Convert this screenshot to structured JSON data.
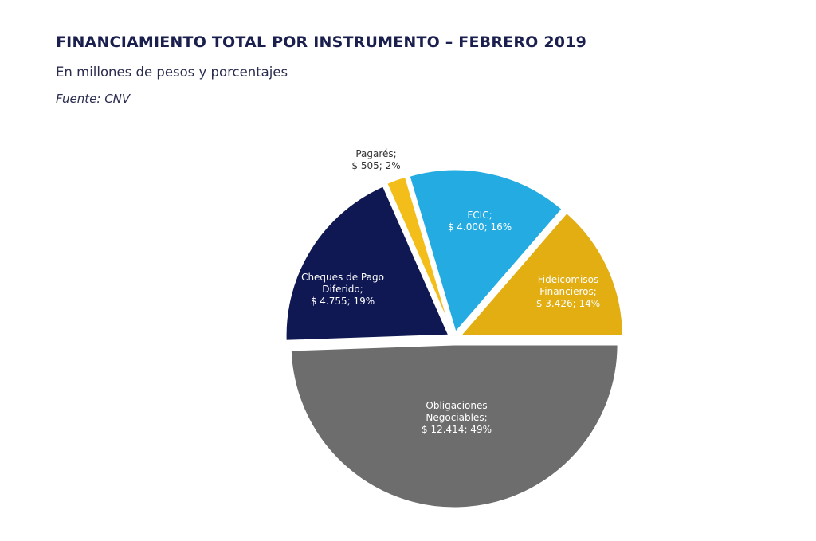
{
  "header": {
    "title": "FINANCIAMIENTO TOTAL POR INSTRUMENTO – FEBRERO 2019",
    "subtitle": "En millones de pesos y porcentajes",
    "source": "Fuente: CNV"
  },
  "chart_data": {
    "type": "pie",
    "title": "FINANCIAMIENTO TOTAL POR INSTRUMENTO – FEBRERO 2019",
    "subtitle": "En millones de pesos y porcentajes",
    "units": "millones de pesos",
    "slices": [
      {
        "name": "Obligaciones Negociables",
        "value": 12414,
        "percent": 49,
        "color": "#6d6d6d",
        "label_lines": [
          "Obligaciones",
          "Negociables;",
          "$ 12.414; 49%"
        ],
        "label_color": "#ffffff"
      },
      {
        "name": "Cheques de Pago Diferido",
        "value": 4755,
        "percent": 19,
        "color": "#0f1852",
        "label_lines": [
          "Cheques de Pago",
          "Diferido;",
          "$ 4.755; 19%"
        ],
        "label_color": "#ffffff"
      },
      {
        "name": "Pagarés",
        "value": 505,
        "percent": 2,
        "color": "#f3be1a",
        "label_lines": [
          "Pagarés;",
          "$ 505; 2%"
        ],
        "label_color": "#333333"
      },
      {
        "name": "FCIC",
        "value": 4000,
        "percent": 16,
        "color": "#24ace2",
        "label_lines": [
          "FCIC;",
          "$ 4.000; 16%"
        ],
        "label_color": "#ffffff"
      },
      {
        "name": "Fideicomisos Financieros",
        "value": 3426,
        "percent": 14,
        "color": "#e2ae12",
        "label_lines": [
          "Fideicomisos",
          "Financieros;",
          "$ 3.426; 14%"
        ],
        "label_color": "#ffffff"
      }
    ]
  }
}
